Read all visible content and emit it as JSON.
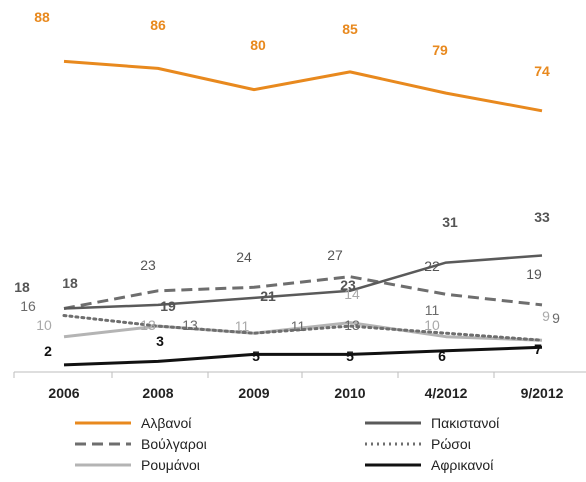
{
  "chart_data": {
    "type": "line",
    "categories": [
      "2006",
      "2008",
      "2009",
      "2010",
      "4/2012",
      "9/2012"
    ],
    "title": "",
    "xlabel": "",
    "ylabel": "",
    "grid": false,
    "legend_position": "bottom",
    "series": [
      {
        "name": "Αλβανοί",
        "values": [
          88,
          86,
          80,
          85,
          79,
          74
        ],
        "labels": [
          "88",
          "86",
          "80",
          "85",
          "79",
          "74"
        ],
        "color": "#e8891e",
        "dash": "solid"
      },
      {
        "name": "Πακιστανοί",
        "values": [
          18,
          19,
          21,
          23,
          31,
          33
        ],
        "labels": [
          "18",
          "19",
          "21",
          "23",
          "31",
          "33"
        ],
        "color": "#5a5a5a",
        "dash": "solid"
      },
      {
        "name": "Βούλγαροι",
        "values": [
          18,
          23,
          24,
          27,
          22,
          19
        ],
        "labels": [
          "",
          "23",
          "24",
          "27",
          "22",
          "19"
        ],
        "color": "#6e6e6e",
        "dash": "dashed"
      },
      {
        "name": "Ρώσοι",
        "values": [
          16,
          13,
          11,
          13,
          11,
          9
        ],
        "labels": [
          "16",
          "13",
          "11",
          "13",
          "11",
          "9"
        ],
        "color": "#6e6e6e",
        "dash": "dotted"
      },
      {
        "name": "Ρουμάνοι",
        "values": [
          10,
          13,
          11,
          14,
          10,
          9
        ],
        "labels": [
          "10",
          "13",
          "11",
          "14",
          "10",
          "9"
        ],
        "color": "#b4b4b4",
        "dash": "solid"
      },
      {
        "name": "Αφρικανοί",
        "values": [
          2,
          3,
          5,
          5,
          6,
          7
        ],
        "labels": [
          "2",
          "3",
          "5",
          "5",
          "6",
          "7"
        ],
        "color": "#111111",
        "dash": "solid"
      }
    ]
  }
}
